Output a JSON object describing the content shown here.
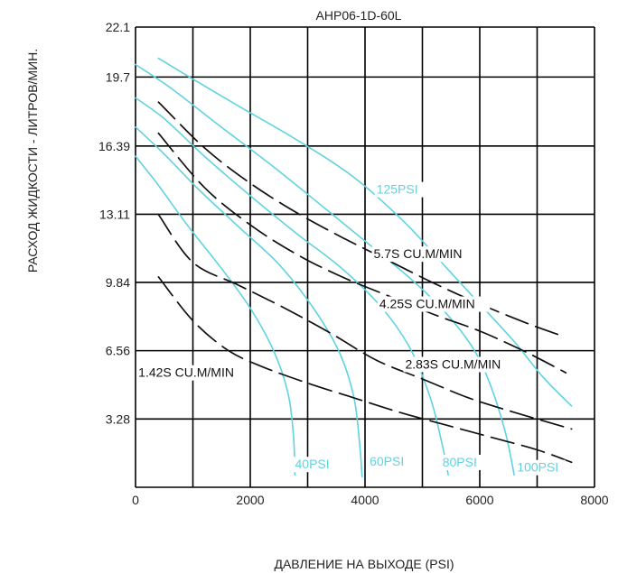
{
  "chart_data": {
    "type": "line",
    "title": "AHP06-1D-60L",
    "xlabel": "ДАВЛЕНИЕ НА ВЫХОДЕ (PSI)",
    "ylabel": "РАСХОД ЖИДКОСТИ - ЛИТРОВ/МИН.",
    "xlim": [
      0,
      8000
    ],
    "ylim": [
      0,
      22.1
    ],
    "x_ticks": [
      0,
      2000,
      4000,
      6000,
      8000
    ],
    "x_tick_labels": [
      "0",
      "2000",
      "4000",
      "6000",
      "8000"
    ],
    "y_ticks": [
      3.28,
      6.56,
      9.84,
      13.11,
      16.39,
      19.7,
      22.1
    ],
    "y_tick_labels": [
      "3.28",
      "6.56",
      "9.84",
      "13.11",
      "16.39",
      "19.7",
      "22.1"
    ],
    "grid": true,
    "colors": {
      "pressure_curves": "#5fd3e0",
      "air_curves": "#111111",
      "grid": "#000000"
    },
    "series": [
      {
        "name": "125PSI",
        "style": "solid",
        "color": "#5fd3e0",
        "x": [
          400,
          1000,
          1800,
          2800,
          3800,
          4700,
          5400,
          6000,
          6600,
          7100,
          7600
        ],
        "y": [
          20.6,
          19.6,
          18.3,
          16.7,
          14.9,
          12.7,
          10.6,
          8.8,
          7.0,
          5.3,
          3.9
        ]
      },
      {
        "name": "100PSI",
        "style": "solid",
        "color": "#5fd3e0",
        "x": [
          0,
          600,
          1400,
          2400,
          3300,
          4100,
          4800,
          5400,
          5900,
          6200,
          6450,
          6600
        ],
        "y": [
          20.3,
          19.2,
          17.5,
          15.4,
          13.4,
          11.6,
          10.0,
          8.4,
          6.6,
          4.8,
          2.6,
          0.6
        ]
      },
      {
        "name": "80PSI",
        "style": "solid",
        "color": "#5fd3e0",
        "x": [
          0,
          500,
          1200,
          2000,
          2800,
          3600,
          4300,
          4800,
          5150,
          5350,
          5450
        ],
        "y": [
          18.7,
          17.7,
          15.9,
          14.0,
          12.2,
          10.5,
          8.6,
          6.6,
          4.2,
          2.0,
          0.6
        ]
      },
      {
        "name": "60PSI",
        "style": "solid",
        "color": "#5fd3e0",
        "x": [
          0,
          500,
          1100,
          1800,
          2500,
          3100,
          3550,
          3800,
          3900,
          3950
        ],
        "y": [
          17.3,
          16.0,
          14.3,
          12.5,
          10.7,
          8.6,
          6.5,
          4.4,
          2.3,
          0.5
        ]
      },
      {
        "name": "40PSI",
        "style": "solid",
        "color": "#5fd3e0",
        "x": [
          0,
          400,
          900,
          1500,
          2000,
          2400,
          2650,
          2750,
          2780
        ],
        "y": [
          15.9,
          14.5,
          12.6,
          10.5,
          8.6,
          6.6,
          4.6,
          2.6,
          0.6
        ]
      },
      {
        "name": "5.7S CU.M/MIN",
        "style": "dashed",
        "color": "#111111",
        "x": [
          400,
          1200,
          2000,
          2800,
          3600,
          4400,
          5200,
          6000,
          6800,
          7400
        ],
        "y": [
          18.5,
          16.3,
          14.6,
          13.2,
          12.0,
          10.9,
          9.8,
          8.8,
          7.9,
          7.3
        ]
      },
      {
        "name": "4.25S CU.M/MIN",
        "style": "dashed",
        "color": "#111111",
        "x": [
          400,
          1200,
          2000,
          2800,
          3600,
          4400,
          5200,
          6000,
          6800,
          7500
        ],
        "y": [
          17.0,
          14.4,
          12.6,
          11.2,
          10.1,
          9.2,
          8.3,
          7.5,
          6.5,
          5.5
        ]
      },
      {
        "name": "2.83S CU.M/MIN",
        "style": "dashed",
        "color": "#111111",
        "x": [
          400,
          1000,
          1800,
          2600,
          3400,
          4200,
          5000,
          5800,
          6600,
          7600
        ],
        "y": [
          13.1,
          10.8,
          9.7,
          8.6,
          7.4,
          6.1,
          5.2,
          4.3,
          3.6,
          2.8
        ]
      },
      {
        "name": "1.42S CU.M/MIN",
        "style": "dashed",
        "color": "#111111",
        "x": [
          400,
          1000,
          1600,
          2200,
          3000,
          3800,
          4600,
          5400,
          6200,
          7000,
          7600
        ],
        "y": [
          10.1,
          8.0,
          6.6,
          5.8,
          5.0,
          4.3,
          3.6,
          3.0,
          2.4,
          1.8,
          1.2
        ]
      }
    ],
    "annotations": [
      {
        "text": "125PSI",
        "color": "#5fd3e0",
        "x": 4200,
        "y": 14.1
      },
      {
        "text": "100PSI",
        "color": "#5fd3e0",
        "x": 6650,
        "y": 0.75
      },
      {
        "text": "80PSI",
        "color": "#5fd3e0",
        "x": 5350,
        "y": 1.0
      },
      {
        "text": "60PSI",
        "color": "#5fd3e0",
        "x": 4080,
        "y": 1.05
      },
      {
        "text": "40PSI",
        "color": "#5fd3e0",
        "x": 2780,
        "y": 0.9
      },
      {
        "text": "5.7S CU.M/MIN",
        "color": "#111111",
        "x": 4150,
        "y": 11.0
      },
      {
        "text": "4.25S CU.M/MIN",
        "color": "#111111",
        "x": 4250,
        "y": 8.6
      },
      {
        "text": "2.83S CU.M/MIN",
        "color": "#111111",
        "x": 4700,
        "y": 5.7
      },
      {
        "text": "1.42S CU.M/MIN",
        "color": "#111111",
        "x": 50,
        "y": 5.3
      }
    ]
  }
}
